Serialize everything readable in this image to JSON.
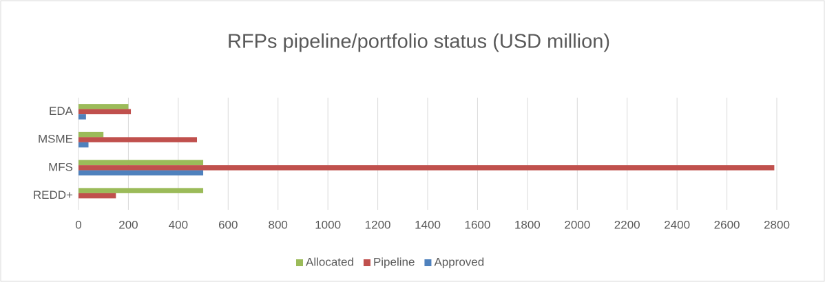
{
  "chart_data": {
    "type": "bar",
    "orientation": "horizontal",
    "title": "RFPs pipeline/portfolio status (USD million)",
    "categories": [
      "EDA",
      "MSME",
      "MFS",
      "REDD+"
    ],
    "series": [
      {
        "name": "Allocated",
        "color": "#9bbb59",
        "values": [
          200,
          100,
          500,
          500
        ]
      },
      {
        "name": "Pipeline",
        "color": "#c0504d",
        "values": [
          210,
          475,
          2790,
          150
        ]
      },
      {
        "name": "Approved",
        "color": "#4f81bd",
        "values": [
          30,
          40,
          500,
          0
        ]
      }
    ],
    "xlim": [
      0,
      2800
    ],
    "xticks": [
      0,
      200,
      400,
      600,
      800,
      1000,
      1200,
      1400,
      1600,
      1800,
      2000,
      2200,
      2400,
      2600,
      2800
    ],
    "grid": true,
    "legend": "bottom"
  }
}
